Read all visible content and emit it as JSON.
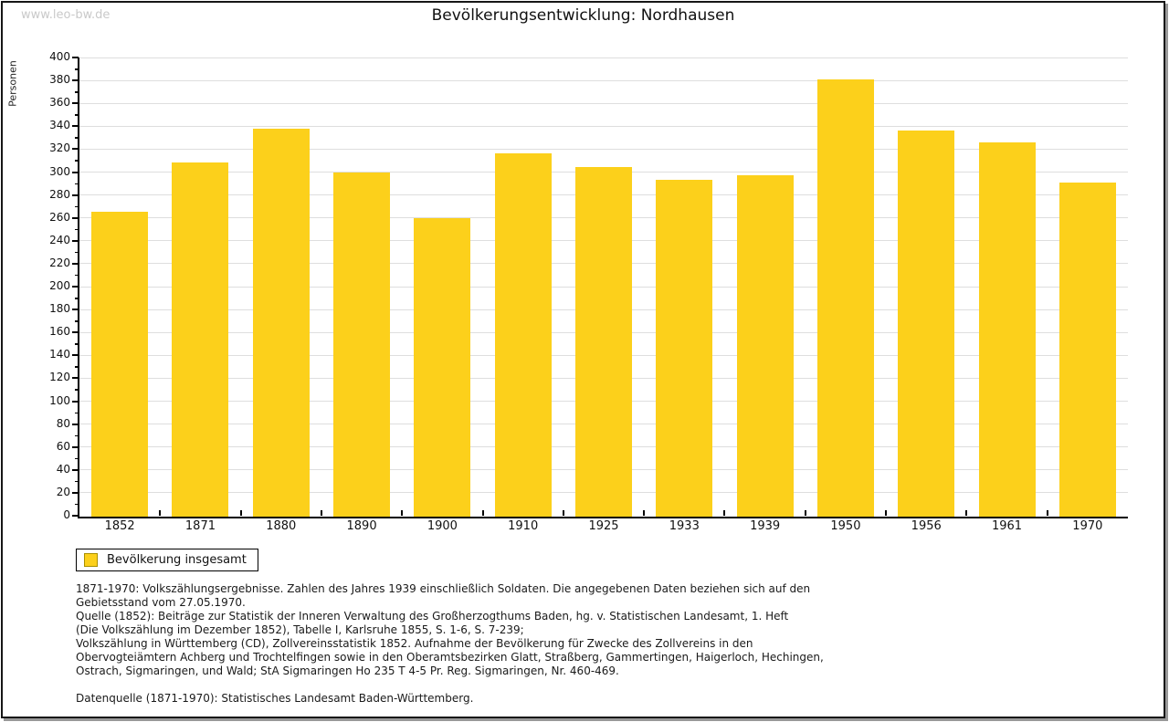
{
  "watermark": "www.leo-bw.de",
  "title": "Bevölkerungsentwicklung: Nordhausen",
  "colors": {
    "bar": "#fcd01b",
    "grid": "#dedede",
    "axis": "#000000",
    "watermark": "#c9c9c9",
    "legend_swatch_border": "#a98f00"
  },
  "legend": {
    "label": "Bevölkerung insgesamt"
  },
  "chart_data": {
    "type": "bar",
    "title": "Bevölkerungsentwicklung: Nordhausen",
    "xlabel": "",
    "ylabel": "Personen",
    "ylim": [
      0,
      400
    ],
    "ytick_step": 20,
    "ytick_minor_step": 10,
    "grid": true,
    "legend_position": "bottom-left",
    "categories": [
      "1852",
      "1871",
      "1880",
      "1890",
      "1900",
      "1910",
      "1925",
      "1933",
      "1939",
      "1950",
      "1956",
      "1961",
      "1970"
    ],
    "series": [
      {
        "name": "Bevölkerung insgesamt",
        "values": [
          265,
          308,
          338,
          300,
          260,
          316,
          304,
          293,
          297,
          381,
          336,
          326,
          291
        ]
      }
    ]
  },
  "footnotes": {
    "lines": [
      "1871-1970: Volkszählungsergebnisse. Zahlen des Jahres 1939 einschließlich Soldaten. Die angegebenen Daten beziehen sich auf den",
      "Gebietsstand vom 27.05.1970.",
      "Quelle (1852): Beiträge zur Statistik der Inneren Verwaltung des Großherzogthums Baden, hg. v. Statistischen Landesamt, 1. Heft",
      "(Die Volkszählung im Dezember 1852), Tabelle I, Karlsruhe 1855, S. 1-6, S. 7-239;",
      "Volkszählung in Württemberg (CD), Zollvereinsstatistik 1852. Aufnahme der Bevölkerung für Zwecke des Zollvereins in den",
      "Obervogteiämtern Achberg und Trochtelfingen sowie in den Oberamtsbezirken Glatt, Straßberg, Gammertingen, Haigerloch, Hechingen,",
      "Ostrach, Sigmaringen, und Wald; StA Sigmaringen Ho 235 T 4-5 Pr. Reg. Sigmaringen, Nr. 460-469.",
      "",
      "Datenquelle (1871-1970): Statistisches Landesamt Baden-Württemberg."
    ]
  }
}
